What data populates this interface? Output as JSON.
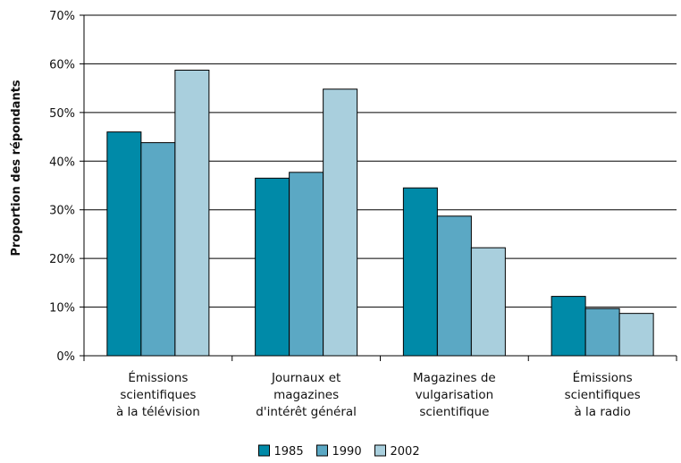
{
  "chart_data": {
    "type": "bar",
    "title": "",
    "xlabel": "",
    "ylabel": "Proportion des répondants",
    "ylim": [
      0,
      70
    ],
    "yticks": [
      "0%",
      "10%",
      "20%",
      "30%",
      "40%",
      "50%",
      "60%",
      "70%"
    ],
    "grid": true,
    "legend_position": "bottom-center",
    "categories": [
      [
        "Émissions",
        "scientifiques",
        "à la télévision"
      ],
      [
        "Journaux et",
        "magazines",
        "d'intérêt général"
      ],
      [
        "Magazines de",
        "vulgarisation",
        "scientifique"
      ],
      [
        "Émissions",
        "scientifiques",
        "à la radio"
      ]
    ],
    "series": [
      {
        "name": "1985",
        "color": "#008aa8",
        "values": [
          46,
          36.5,
          34.5,
          12.2
        ]
      },
      {
        "name": "1990",
        "color": "#5ba8c4",
        "values": [
          43.8,
          37.7,
          28.7,
          9.7
        ]
      },
      {
        "name": "2002",
        "color": "#a9cfdd",
        "values": [
          58.7,
          54.8,
          22.2,
          8.7
        ]
      }
    ]
  }
}
